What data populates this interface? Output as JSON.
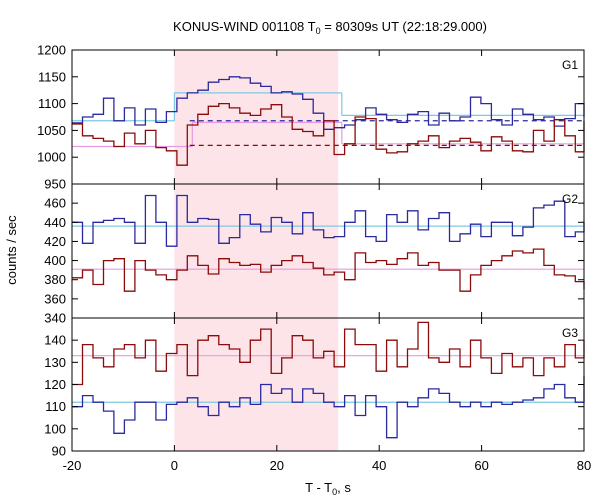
{
  "chart_data": {
    "type": "line",
    "title": "KONUS-WIND 001108 T",
    "title_sub": "0",
    "title_rest": " = 80309s UT (22:18:29.000)",
    "xlabel": "T - T",
    "xlabel_sub": "0",
    "xlabel_rest": ", s",
    "ylabel": "counts / sec",
    "xlim": [
      -20,
      80
    ],
    "xticks": [
      "-20",
      "0",
      "20",
      "40",
      "60",
      "80"
    ],
    "grid": false,
    "highlight_interval": [
      0,
      32
    ],
    "colors": {
      "blue": "#2a2a9e",
      "red": "#8b0a0a",
      "cyan": "#7ec8e3",
      "pink": "#e89ae0",
      "shade": "#fde4e8"
    },
    "binwidth": 2.048,
    "panels": [
      {
        "label": "G1",
        "ylim": [
          950,
          1200
        ],
        "yticks": [
          "950",
          "1000",
          "1050",
          "1100",
          "1150",
          "1200"
        ],
        "series": [
          {
            "color": "blue",
            "start": -20,
            "values": [
              1064,
              1075,
              1080,
              1110,
              1068,
              1092,
              1060,
              1090,
              1065,
              1085,
              1110,
              1120,
              1125,
              1140,
              1145,
              1150,
              1148,
              1138,
              1132,
              1120,
              1122,
              1118,
              1108,
              1082,
              1052,
              1055,
              1060,
              1070,
              1092,
              1080,
              1070,
              1065,
              1080,
              1085,
              1060,
              1082,
              1068,
              1075,
              1112,
              1100,
              1070,
              1060,
              1090,
              1080,
              1070,
              1075,
              1058,
              1072,
              1100,
              1075
            ]
          },
          {
            "color": "red",
            "start": -20,
            "values": [
              1062,
              1040,
              1035,
              1030,
              1020,
              1045,
              1025,
              1050,
              1018,
              1012,
              985,
              1060,
              1080,
              1095,
              1100,
              1092,
              1082,
              1078,
              1090,
              1098,
              1075,
              1052,
              1048,
              1040,
              1068,
              1005,
              1025,
              1075,
              1072,
              1015,
              1008,
              1010,
              1025,
              1030,
              1040,
              1018,
              1030,
              1035,
              1028,
              1012,
              1038,
              1030,
              1012,
              1010,
              1050,
              1030,
              1070,
              1040,
              1010,
              1068
            ]
          }
        ],
        "steps": [
          {
            "color": "cyan",
            "from": -20,
            "to": 0,
            "y": 1068
          },
          {
            "color": "cyan",
            "from": 0,
            "to": 32.7,
            "y": 1120
          },
          {
            "color": "cyan",
            "from": 32.7,
            "to": 80,
            "y": 1078
          },
          {
            "color": "pink",
            "from": -20,
            "to": 3.5,
            "y": 1020
          },
          {
            "color": "pink",
            "from": 3.5,
            "to": 32.7,
            "y": 1065
          },
          {
            "color": "pink",
            "from": 32.7,
            "to": 80,
            "y": 1025
          }
        ],
        "dashed": [
          {
            "color": "blue",
            "from": 3,
            "to": 80,
            "y": 1068
          },
          {
            "color": "red",
            "from": 3,
            "to": 80,
            "y": 1022
          }
        ]
      },
      {
        "label": "G2",
        "ylim": [
          340,
          480
        ],
        "yticks": [
          "340",
          "360",
          "380",
          "400",
          "420",
          "440",
          "460"
        ],
        "series": [
          {
            "color": "blue",
            "start": -20,
            "values": [
              440,
              418,
              440,
              442,
              444,
              440,
              418,
              468,
              440,
              415,
              468,
              440,
              444,
              443,
              418,
              424,
              448,
              438,
              430,
              445,
              440,
              428,
              450,
              432,
              424,
              425,
              440,
              452,
              425,
              420,
              448,
              440,
              452,
              432,
              444,
              450,
              420,
              428,
              438,
              425,
              440,
              440,
              426,
              435,
              455,
              458,
              462,
              425,
              430,
              440
            ]
          },
          {
            "color": "red",
            "start": -20,
            "values": [
              382,
              390,
              375,
              400,
              402,
              368,
              400,
              390,
              385,
              380,
              390,
              405,
              395,
              386,
              402,
              398,
              395,
              396,
              388,
              395,
              400,
              405,
              398,
              392,
              385,
              388,
              380,
              408,
              398,
              400,
              396,
              402,
              408,
              395,
              398,
              390,
              390,
              368,
              385,
              395,
              400,
              405,
              410,
              408,
              412,
              395,
              385,
              384,
              378,
              370
            ]
          }
        ],
        "steps": [
          {
            "color": "cyan",
            "from": -20,
            "to": 80,
            "y": 436
          },
          {
            "color": "pink",
            "from": -20,
            "to": 80,
            "y": 391
          }
        ],
        "dashed": []
      },
      {
        "label": "G3",
        "ylim": [
          90,
          150
        ],
        "yticks": [
          "90",
          "100",
          "110",
          "120",
          "130",
          "140"
        ],
        "series": [
          {
            "color": "blue",
            "start": -20,
            "values": [
              110,
              115,
              112,
              108,
              98,
              104,
              112,
              112,
              104,
              111,
              112,
              114,
              110,
              106,
              112,
              110,
              114,
              111,
              120,
              116,
              118,
              112,
              118,
              116,
              112,
              110,
              115,
              106,
              115,
              110,
              96,
              112,
              110,
              114,
              118,
              116,
              112,
              110,
              112,
              110,
              112,
              111,
              112,
              113,
              114,
              118,
              120,
              114,
              112,
              124
            ]
          },
          {
            "color": "red",
            "start": -20,
            "values": [
              120,
              138,
              132,
              128,
              136,
              138,
              132,
              140,
              126,
              134,
              138,
              124,
              140,
              142,
              138,
              136,
              130,
              140,
              145,
              125,
              132,
              142,
              140,
              132,
              135,
              128,
              145,
              138,
              138,
              126,
              140,
              128,
              136,
              148,
              132,
              130,
              136,
              128,
              140,
              132,
              125,
              134,
              128,
              132,
              124,
              132,
              128,
              138,
              132,
              140
            ]
          }
        ],
        "steps": [
          {
            "color": "cyan",
            "from": -20,
            "to": 80,
            "y": 112
          },
          {
            "color": "pink",
            "from": -20,
            "to": 80,
            "y": 133
          }
        ],
        "dashed": []
      }
    ]
  }
}
